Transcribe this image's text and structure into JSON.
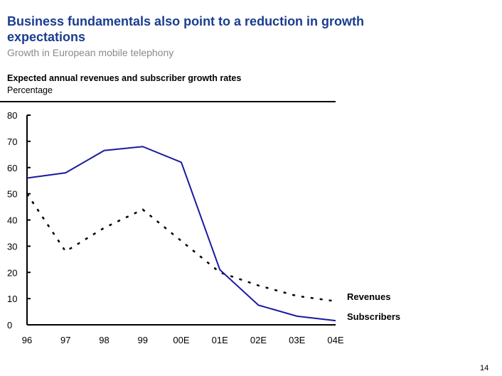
{
  "title": "Business fundamentals also point to a reduction in growth expectations",
  "subtitle": "Growth in European mobile telephony",
  "page_number": "14",
  "chart_data": {
    "type": "line",
    "title": "Expected annual revenues and subscriber growth rates",
    "ylabel": "Percentage",
    "xlabel": "",
    "categories": [
      "96",
      "97",
      "98",
      "99",
      "00E",
      "01E",
      "02E",
      "03E",
      "04E"
    ],
    "ylim": [
      0,
      80
    ],
    "yticks": [
      0,
      10,
      20,
      30,
      40,
      50,
      60,
      70,
      80
    ],
    "grid": false,
    "legend": "inline labels at right end of lines",
    "series": [
      {
        "name": "Revenues",
        "style": "dashed",
        "color": "#000000",
        "values": [
          50,
          28,
          37,
          44,
          32,
          20,
          15,
          11,
          9
        ]
      },
      {
        "name": "Subscribers",
        "style": "solid",
        "color": "#1a1aa0",
        "values": [
          56,
          58,
          66.5,
          68,
          62,
          21,
          7.5,
          3.3,
          1.6
        ]
      }
    ]
  }
}
